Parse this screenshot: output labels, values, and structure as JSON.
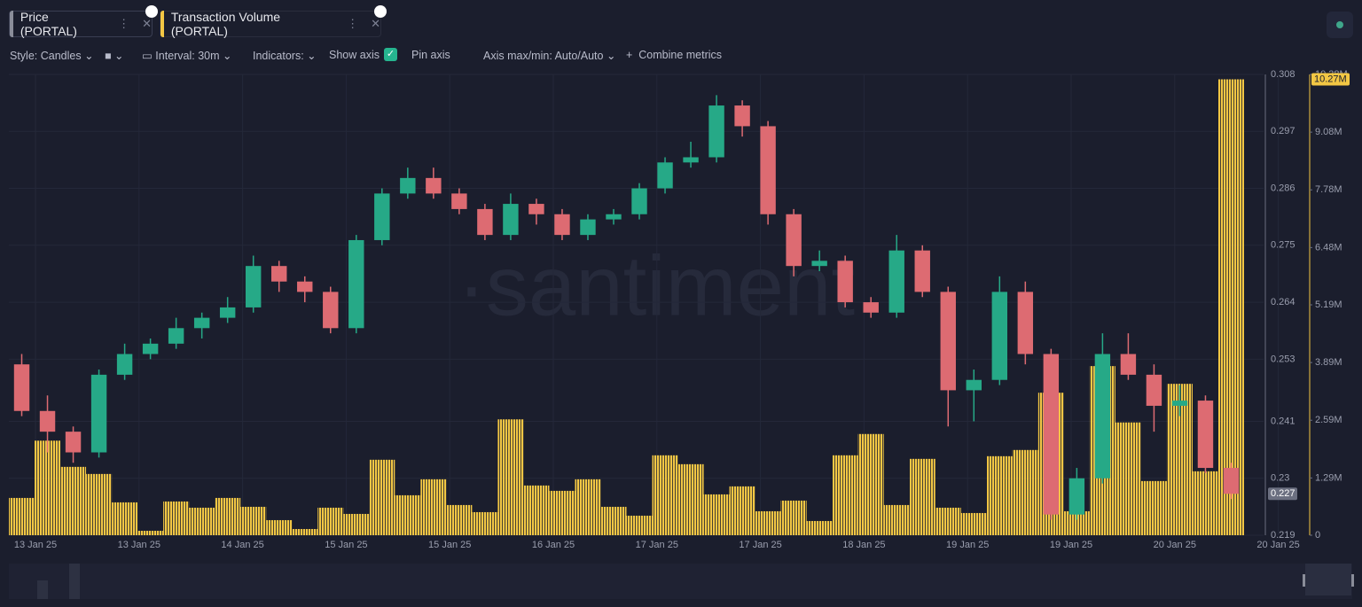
{
  "chart_data": {
    "type": "candlestick",
    "watermark": "·santiment",
    "toolbar": {
      "style": "Style: Candles",
      "interval": "Interval: 30m",
      "indicators": "Indicators:",
      "show_axis": "Show axis",
      "pin_axis": "Pin axis",
      "axis_maxmin": "Axis max/min: Auto/Auto",
      "combine": "Combine metrics"
    },
    "x_labels": [
      "13 Jan 25",
      "13 Jan 25",
      "14 Jan 25",
      "15 Jan 25",
      "15 Jan 25",
      "16 Jan 25",
      "17 Jan 25",
      "17 Jan 25",
      "18 Jan 25",
      "19 Jan 25",
      "19 Jan 25",
      "20 Jan 25",
      "20 Jan 25"
    ],
    "ylim": [
      0.219,
      0.308
    ],
    "yticks": [
      0.219,
      0.23,
      0.241,
      0.253,
      0.264,
      0.275,
      0.286,
      0.297,
      0.308
    ],
    "y2lim": [
      0,
      10.38
    ],
    "y2ticks": [
      0,
      {
        "value": 1.29,
        "label": "1.29M"
      },
      {
        "value": 2.59,
        "label": "2.59M"
      },
      {
        "value": 3.89,
        "label": "3.89M"
      },
      {
        "value": 5.19,
        "label": "5.19M"
      },
      {
        "value": 6.48,
        "label": "6.48M"
      },
      {
        "value": 7.78,
        "label": "7.78M"
      },
      {
        "value": 9.08,
        "label": "9.08M"
      },
      {
        "value": 10.38,
        "label": "10.38M"
      }
    ],
    "series": [
      {
        "name": "Price (PORTAL)",
        "type": "candlestick",
        "up_color": "#26a987",
        "down_color": "#dd6b72",
        "open": [
          0.252,
          0.243,
          0.239,
          0.235,
          0.25,
          0.254,
          0.256,
          0.259,
          0.261,
          0.263,
          0.271,
          0.268,
          0.266,
          0.259,
          0.276,
          0.285,
          0.288,
          0.285,
          0.282,
          0.277,
          0.283,
          0.281,
          0.277,
          0.28,
          0.281,
          0.286,
          0.291,
          0.292,
          0.302,
          0.298,
          0.281,
          0.271,
          0.272,
          0.264,
          0.262,
          0.274,
          0.266,
          0.247,
          0.249,
          0.266,
          0.254,
          0.223,
          0.23,
          0.254,
          0.25,
          0.244,
          0.245,
          0.232
        ],
        "high": [
          0.254,
          0.246,
          0.24,
          0.251,
          0.256,
          0.257,
          0.261,
          0.262,
          0.265,
          0.273,
          0.272,
          0.269,
          0.267,
          0.277,
          0.286,
          0.29,
          0.29,
          0.286,
          0.283,
          0.285,
          0.284,
          0.282,
          0.281,
          0.282,
          0.287,
          0.292,
          0.295,
          0.304,
          0.303,
          0.299,
          0.282,
          0.274,
          0.273,
          0.265,
          0.277,
          0.275,
          0.267,
          0.251,
          0.269,
          0.268,
          0.255,
          0.232,
          0.258,
          0.258,
          0.252,
          0.248,
          0.246,
          0.233
        ],
        "low": [
          0.242,
          0.235,
          0.233,
          0.234,
          0.249,
          0.253,
          0.255,
          0.257,
          0.26,
          0.262,
          0.266,
          0.264,
          0.258,
          0.258,
          0.275,
          0.284,
          0.284,
          0.281,
          0.276,
          0.276,
          0.279,
          0.276,
          0.276,
          0.279,
          0.28,
          0.285,
          0.29,
          0.291,
          0.296,
          0.279,
          0.269,
          0.27,
          0.263,
          0.261,
          0.261,
          0.265,
          0.24,
          0.241,
          0.248,
          0.252,
          0.222,
          0.222,
          0.229,
          0.249,
          0.239,
          0.242,
          0.231,
          0.226
        ],
        "close": [
          0.243,
          0.239,
          0.235,
          0.25,
          0.254,
          0.256,
          0.259,
          0.261,
          0.263,
          0.271,
          0.268,
          0.266,
          0.259,
          0.276,
          0.285,
          0.288,
          0.285,
          0.282,
          0.277,
          0.283,
          0.281,
          0.277,
          0.28,
          0.281,
          0.286,
          0.291,
          0.292,
          0.302,
          0.298,
          0.281,
          0.271,
          0.272,
          0.264,
          0.262,
          0.274,
          0.266,
          0.247,
          0.249,
          0.266,
          0.254,
          0.223,
          0.23,
          0.254,
          0.25,
          0.244,
          0.245,
          0.232,
          0.227
        ]
      },
      {
        "name": "Transaction Volume (PORTAL)",
        "type": "bar",
        "axis": "y2",
        "color": "#f3c744",
        "last_label": "10.27M",
        "values": [
          0.84,
          2.13,
          1.54,
          1.38,
          0.74,
          0.1,
          0.76,
          0.62,
          0.84,
          0.64,
          0.34,
          0.14,
          0.62,
          0.48,
          1.7,
          0.9,
          1.26,
          0.68,
          0.52,
          2.61,
          1.12,
          1.0,
          1.26,
          0.64,
          0.44,
          1.8,
          1.6,
          0.92,
          1.1,
          0.54,
          0.78,
          0.32,
          1.8,
          2.28,
          0.68,
          1.72,
          0.62,
          0.5,
          1.78,
          1.92,
          3.21,
          0.54,
          3.81,
          2.54,
          1.22,
          3.41,
          1.44,
          10.27
        ]
      }
    ]
  }
}
